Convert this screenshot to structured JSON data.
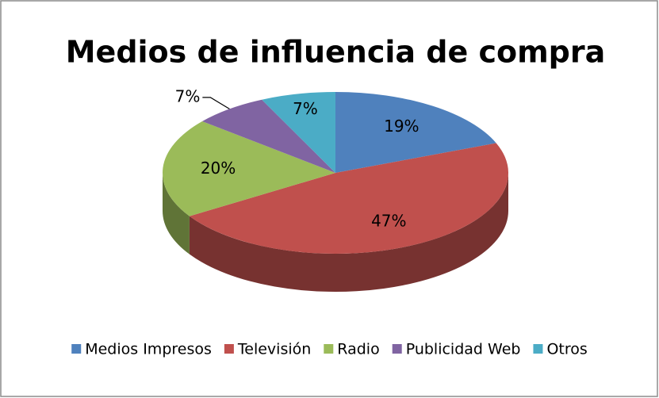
{
  "chart_data": {
    "type": "pie",
    "title": "Medios de influencia de compra",
    "categories": [
      "Medios Impresos",
      "Televisión",
      "Radio",
      "Publicidad Web",
      "Otros"
    ],
    "values": [
      19,
      47,
      20,
      7,
      7
    ],
    "value_labels": [
      "19%",
      "47%",
      "20%",
      "7%",
      "7%"
    ],
    "colors": [
      "#4f81bd",
      "#c0504d",
      "#9bbb59",
      "#8064a2",
      "#4bacc6"
    ],
    "legend": "bottom"
  }
}
